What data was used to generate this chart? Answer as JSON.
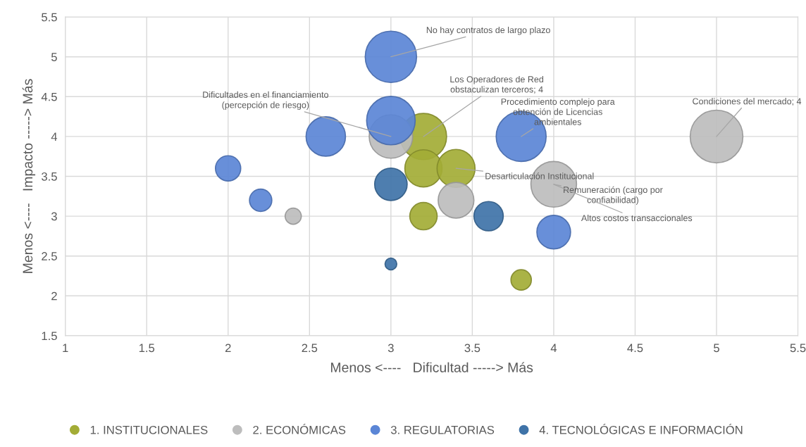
{
  "chart_data": {
    "type": "bubble",
    "xlabel": "Menos <----   Dificultad -----> Más",
    "ylabel": "Menos <----   Impacto -----> Más",
    "xlim": [
      1,
      5.5
    ],
    "xticks": [
      1,
      1.5,
      2,
      2.5,
      3,
      3.5,
      4,
      4.5,
      5,
      5.5
    ],
    "ylim": [
      1.5,
      5.5
    ],
    "yticks": [
      1.5,
      2,
      2.5,
      3,
      3.5,
      4,
      4.5,
      5,
      5.5
    ],
    "grid": true,
    "legend": "bottom",
    "marker": "circle",
    "series": [
      {
        "name": "1. INSTITUCIONALES",
        "color": "#a3ac36",
        "x": [
          3.2,
          3.2,
          3.4,
          3.2,
          3.8
        ],
        "values": [
          4.0,
          3.6,
          3.6,
          3.0,
          2.2
        ],
        "sizes": [
          0.77,
          0.5,
          0.52,
          0.27,
          0.15
        ]
      },
      {
        "name": "2. ECONÓMICAS",
        "color": "#bdbdbd",
        "x": [
          3.0,
          3.4,
          2.4,
          4.0,
          5.0
        ],
        "values": [
          4.0,
          3.2,
          3.0,
          3.4,
          4.0
        ],
        "sizes": [
          0.68,
          0.46,
          0.094,
          0.75,
          1
        ]
      },
      {
        "name": "3. REGULATORIAS",
        "color": "#5b86d6",
        "x": [
          3.0,
          3.0,
          2.6,
          2.0,
          2.2,
          3.8,
          4.0
        ],
        "values": [
          5.0,
          4.2,
          4.0,
          3.6,
          3.2,
          4.0,
          2.8
        ],
        "sizes": [
          0.95,
          0.85,
          0.56,
          0.23,
          0.18,
          0.9,
          0.41
        ]
      },
      {
        "name": "4. TECNOLÓGICAS E INFORMACIÓN",
        "color": "#3f73a8",
        "x": [
          3.0,
          3.6,
          3.0
        ],
        "values": [
          3.4,
          3.0,
          2.4
        ],
        "sizes": [
          0.38,
          0.31,
          0.05
        ]
      }
    ],
    "annotations": [
      {
        "text": "No hay contratos de largo plazo",
        "x": 3.0,
        "y": 5.0
      },
      {
        "text": "Los Operadores de Red\nobstaculizan terceros; 4",
        "x": 3.2,
        "y": 4.0
      },
      {
        "text": "Dificultades en el financiamiento\n(percepción de riesgo)",
        "x": 3.0,
        "y": 4.0
      },
      {
        "text": "Procedimiento complejo para\nobtención de Licencias\nambientales",
        "x": 3.8,
        "y": 4.0
      },
      {
        "text": "Condiciones del mercado; 4",
        "x": 5.0,
        "y": 4.0
      },
      {
        "text": "Desarticulación Institucional",
        "x": 3.4,
        "y": 3.6
      },
      {
        "text": "Remuneración (cargo por\nconfiabilidad)",
        "x": 4.0,
        "y": 3.4
      },
      {
        "text": "Altos costos transaccionales",
        "x": 4.0,
        "y": 3.4
      }
    ]
  }
}
